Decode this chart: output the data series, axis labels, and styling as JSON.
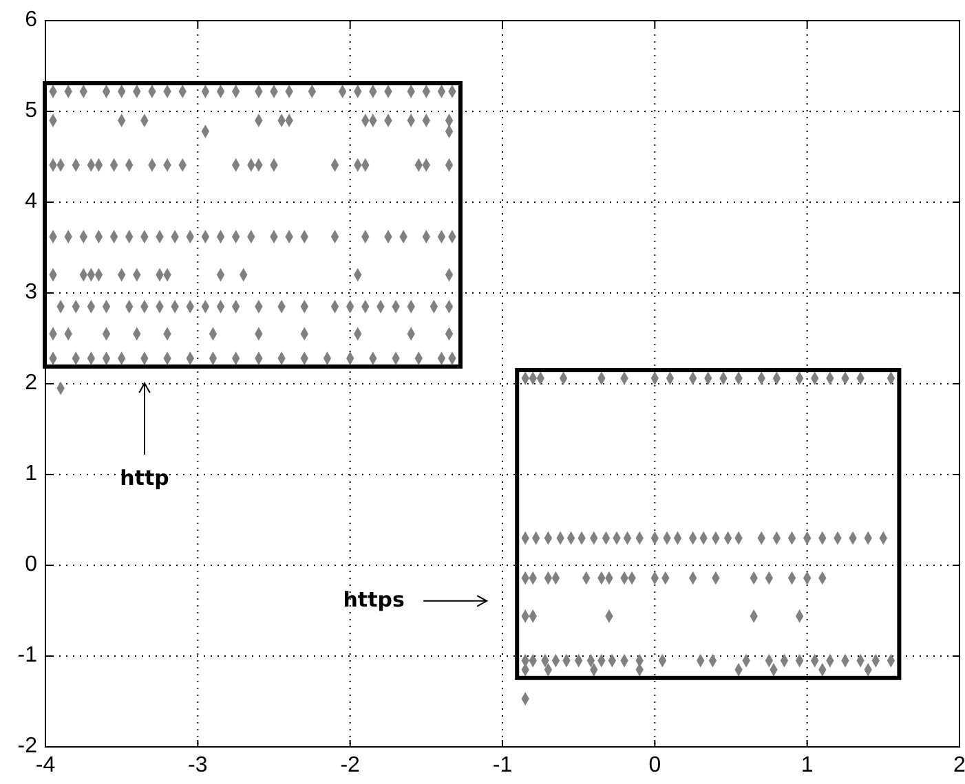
{
  "chart_data": {
    "type": "scatter",
    "xlim": [
      -4,
      2
    ],
    "ylim": [
      -2,
      6
    ],
    "xticks": [
      -4,
      -3,
      -2,
      -1,
      0,
      1,
      2
    ],
    "yticks": [
      -2,
      -1,
      0,
      1,
      2,
      3,
      4,
      5,
      6
    ],
    "grid": true,
    "marker": "diamond",
    "annotations": [
      "http",
      "https"
    ],
    "series": [
      {
        "color": "#808080",
        "x": [
          -3.95,
          -3.85,
          -3.75,
          -3.6,
          -3.5,
          -3.4,
          -3.3,
          -3.2,
          -3.1,
          -2.95,
          -2.85,
          -2.75,
          -2.6,
          -2.5,
          -2.4,
          -2.25,
          -2.05,
          -1.95,
          -1.85,
          -1.75,
          -1.6,
          -1.5,
          -1.4,
          -1.33,
          -3.95,
          -3.5,
          -3.35,
          -2.6,
          -2.45,
          -2.4,
          -1.9,
          -1.85,
          -1.75,
          -1.6,
          -1.5,
          -1.35,
          -2.95,
          -1.35,
          -3.95,
          -3.9,
          -3.8,
          -3.7,
          -3.65,
          -3.55,
          -3.45,
          -3.3,
          -3.2,
          -3.1,
          -2.75,
          -2.65,
          -2.6,
          -2.5,
          -2.1,
          -1.95,
          -1.9,
          -1.55,
          -1.5,
          -1.35,
          -3.95,
          -3.85,
          -3.75,
          -3.65,
          -3.55,
          -3.45,
          -3.35,
          -3.25,
          -3.15,
          -3.05,
          -2.95,
          -2.85,
          -2.75,
          -2.65,
          -2.5,
          -2.4,
          -2.3,
          -2.1,
          -1.9,
          -1.75,
          -1.65,
          -1.5,
          -1.4,
          -1.33,
          -3.95,
          -3.75,
          -3.7,
          -3.65,
          -3.5,
          -3.4,
          -3.25,
          -3.2,
          -2.85,
          -2.7,
          -1.95,
          -1.35,
          -3.9,
          -3.8,
          -3.7,
          -3.6,
          -3.45,
          -3.35,
          -3.25,
          -3.15,
          -3.05,
          -2.95,
          -2.85,
          -2.75,
          -2.6,
          -2.45,
          -2.3,
          -2.1,
          -2.0,
          -1.9,
          -1.8,
          -1.7,
          -1.6,
          -1.45,
          -1.35,
          -3.95,
          -3.85,
          -3.6,
          -3.4,
          -3.2,
          -2.9,
          -2.6,
          -2.3,
          -1.95,
          -1.6,
          -1.35,
          -3.95,
          -3.8,
          -3.7,
          -3.6,
          -3.5,
          -3.35,
          -3.2,
          -3.05,
          -2.9,
          -2.75,
          -2.6,
          -2.45,
          -2.3,
          -2.15,
          -2.0,
          -1.85,
          -1.7,
          -1.55,
          -1.4,
          -1.33
        ],
        "values": [
          5.22,
          5.22,
          5.22,
          5.22,
          5.22,
          5.22,
          5.22,
          5.22,
          5.22,
          5.22,
          5.22,
          5.22,
          5.22,
          5.22,
          5.22,
          5.22,
          5.22,
          5.22,
          5.22,
          5.22,
          5.22,
          5.22,
          5.22,
          5.22,
          4.9,
          4.9,
          4.9,
          4.9,
          4.9,
          4.9,
          4.9,
          4.9,
          4.9,
          4.9,
          4.9,
          4.9,
          4.78,
          4.78,
          4.41,
          4.41,
          4.41,
          4.41,
          4.41,
          4.41,
          4.41,
          4.41,
          4.41,
          4.41,
          4.41,
          4.41,
          4.41,
          4.41,
          4.41,
          4.41,
          4.41,
          4.41,
          4.41,
          4.41,
          3.62,
          3.62,
          3.62,
          3.62,
          3.62,
          3.62,
          3.62,
          3.62,
          3.62,
          3.62,
          3.62,
          3.62,
          3.62,
          3.62,
          3.62,
          3.62,
          3.62,
          3.62,
          3.62,
          3.62,
          3.62,
          3.62,
          3.62,
          3.62,
          3.2,
          3.2,
          3.2,
          3.2,
          3.2,
          3.2,
          3.2,
          3.2,
          3.2,
          3.2,
          3.2,
          3.2,
          2.85,
          2.85,
          2.85,
          2.85,
          2.85,
          2.85,
          2.85,
          2.85,
          2.85,
          2.85,
          2.85,
          2.85,
          2.85,
          2.85,
          2.85,
          2.85,
          2.85,
          2.85,
          2.85,
          2.85,
          2.85,
          2.85,
          2.85,
          2.55,
          2.55,
          2.55,
          2.55,
          2.55,
          2.55,
          2.55,
          2.55,
          2.55,
          2.55,
          2.55,
          2.28,
          2.28,
          2.28,
          2.28,
          2.28,
          2.28,
          2.28,
          2.28,
          2.28,
          2.28,
          2.28,
          2.28,
          2.28,
          2.28,
          2.28,
          2.28,
          2.28,
          2.28,
          2.28,
          2.28
        ]
      },
      {
        "color": "#808080",
        "x": [
          -0.85,
          -0.8,
          -0.75,
          -0.6,
          -0.35,
          -0.2,
          0.0,
          0.1,
          0.25,
          0.35,
          0.45,
          0.55,
          0.7,
          0.8,
          0.95,
          1.05,
          1.15,
          1.25,
          1.35,
          1.55,
          -0.85,
          -0.78,
          -0.7,
          -0.62,
          -0.55,
          -0.48,
          -0.4,
          -0.32,
          -0.25,
          -0.18,
          -0.1,
          0.0,
          0.08,
          0.15,
          0.25,
          0.32,
          0.4,
          0.48,
          0.55,
          0.7,
          0.8,
          0.9,
          1.0,
          1.1,
          1.2,
          1.3,
          1.4,
          1.5,
          -0.85,
          -0.8,
          -0.7,
          -0.65,
          -0.45,
          -0.35,
          -0.3,
          -0.2,
          -0.15,
          0.0,
          0.07,
          0.25,
          0.4,
          0.65,
          0.75,
          0.9,
          1.0,
          1.1,
          -0.85,
          -0.8,
          -0.3,
          0.65,
          0.95,
          -0.85,
          -0.8,
          -0.72,
          -0.65,
          -0.58,
          -0.5,
          -0.42,
          -0.35,
          -0.28,
          -0.2,
          -0.1,
          0.05,
          0.3,
          0.38,
          0.6,
          0.75,
          0.85,
          0.95,
          1.05,
          1.15,
          1.25,
          1.35,
          1.45,
          1.55,
          -0.85,
          -0.7,
          -0.4,
          -0.1,
          0.55,
          0.78,
          1.1,
          1.4
        ],
        "values": [
          2.06,
          2.06,
          2.06,
          2.06,
          2.06,
          2.06,
          2.06,
          2.06,
          2.06,
          2.06,
          2.06,
          2.06,
          2.06,
          2.06,
          2.06,
          2.06,
          2.06,
          2.06,
          2.06,
          2.06,
          0.3,
          0.3,
          0.3,
          0.3,
          0.3,
          0.3,
          0.3,
          0.3,
          0.3,
          0.3,
          0.3,
          0.3,
          0.3,
          0.3,
          0.3,
          0.3,
          0.3,
          0.3,
          0.3,
          0.3,
          0.3,
          0.3,
          0.3,
          0.3,
          0.3,
          0.3,
          0.3,
          0.3,
          -0.14,
          -0.14,
          -0.14,
          -0.14,
          -0.14,
          -0.14,
          -0.14,
          -0.14,
          -0.14,
          -0.14,
          -0.14,
          -0.14,
          -0.14,
          -0.14,
          -0.14,
          -0.14,
          -0.14,
          -0.14,
          -0.56,
          -0.56,
          -0.56,
          -0.56,
          -0.56,
          -1.05,
          -1.05,
          -1.05,
          -1.05,
          -1.05,
          -1.05,
          -1.05,
          -1.05,
          -1.05,
          -1.05,
          -1.05,
          -1.05,
          -1.05,
          -1.05,
          -1.05,
          -1.05,
          -1.05,
          -1.05,
          -1.05,
          -1.05,
          -1.05,
          -1.05,
          -1.05,
          -1.05,
          -1.15,
          -1.15,
          -1.15,
          -1.15,
          -1.15,
          -1.15,
          -1.15,
          -1.15
        ]
      },
      {
        "color": "#808080",
        "x": [
          -3.9,
          -0.85
        ],
        "values": [
          1.95,
          -1.47
        ]
      }
    ]
  }
}
